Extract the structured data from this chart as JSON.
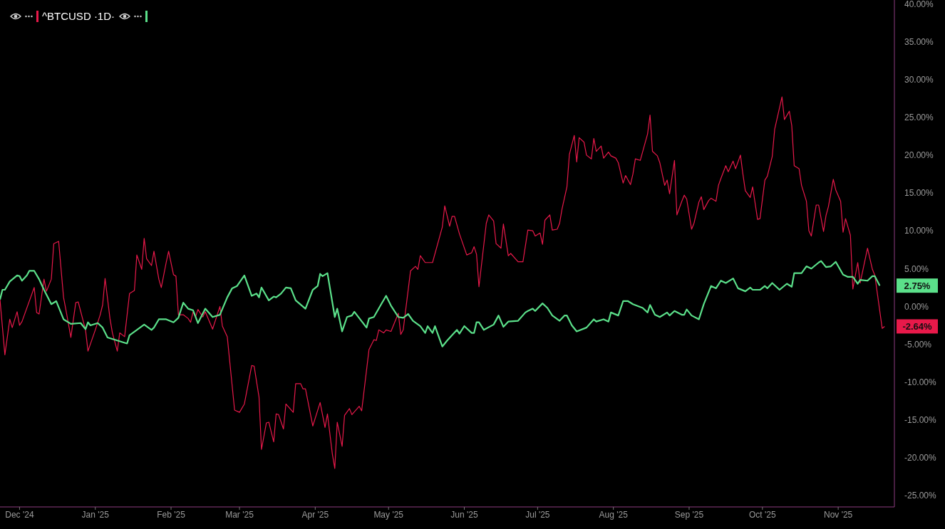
{
  "chart_data": {
    "type": "line",
    "legend": "top left",
    "marker": "none",
    "xlim": [
      "2024-11-23",
      "2025-11-24"
    ],
    "xticks": [
      {
        "value": "2024-12-01",
        "label": "Dec '24"
      },
      {
        "value": "2025-01-01",
        "label": "Jan '25"
      },
      {
        "value": "2025-02-01",
        "label": "Feb '25"
      },
      {
        "value": "2025-03-01",
        "label": "Mar '25"
      },
      {
        "value": "2025-04-01",
        "label": "Apr '25"
      },
      {
        "value": "2025-05-01",
        "label": "May '25"
      },
      {
        "value": "2025-06-01",
        "label": "Jun '25"
      },
      {
        "value": "2025-07-01",
        "label": "Jul '25"
      },
      {
        "value": "2025-08-01",
        "label": "Aug '25"
      },
      {
        "value": "2025-09-01",
        "label": "Sep '25"
      },
      {
        "value": "2025-10-01",
        "label": "Oct '25"
      },
      {
        "value": "2025-11-01",
        "label": "Nov '25"
      }
    ],
    "ylim": [
      -26.5,
      40.5
    ],
    "yticks": [
      {
        "value": -25,
        "label": "-25.00%"
      },
      {
        "value": -20,
        "label": "-20.00%"
      },
      {
        "value": -15,
        "label": "-15.00%"
      },
      {
        "value": -10,
        "label": "-10.00%"
      },
      {
        "value": -5,
        "label": "-5.00%"
      },
      {
        "value": 0,
        "label": "0.00%"
      },
      {
        "value": 5,
        "label": "5.00%"
      },
      {
        "value": 10,
        "label": "10.00%"
      },
      {
        "value": 15,
        "label": "15.00%"
      },
      {
        "value": 20,
        "label": "20.00%"
      },
      {
        "value": 25,
        "label": "25.00%"
      },
      {
        "value": 30,
        "label": "30.00%"
      },
      {
        "value": 35,
        "label": "35.00%"
      },
      {
        "value": 40,
        "label": "40.00%"
      }
    ],
    "annotations": [
      {
        "text": "-2.64%",
        "x": "2025-11-20",
        "y": -2.64
      },
      {
        "text": "2.75%",
        "x": "2025-11-18",
        "y": 2.75
      }
    ],
    "series": [
      {
        "name": "^BTCUSD ·1D·",
        "color": "#e8194a",
        "x": [
          "2024-11-23",
          "2024-11-25",
          "2024-11-27",
          "2024-11-28",
          "2024-11-30",
          "2024-12-01",
          "2024-12-02",
          "2024-12-07",
          "2024-12-08",
          "2024-12-09",
          "2024-12-11",
          "2024-12-12",
          "2024-12-14",
          "2024-12-15",
          "2024-12-17",
          "2024-12-19",
          "2024-12-20",
          "2024-12-22",
          "2024-12-24",
          "2024-12-25",
          "2024-12-28",
          "2024-12-29",
          "2025-01-01",
          "2025-01-03",
          "2025-01-04",
          "2025-01-05",
          "2025-01-07",
          "2025-01-08",
          "2025-01-10",
          "2025-01-11",
          "2025-01-13",
          "2025-01-15",
          "2025-01-17",
          "2025-01-18",
          "2025-01-20",
          "2025-01-21",
          "2025-01-22",
          "2025-01-24",
          "2025-01-25",
          "2025-01-27",
          "2025-01-28",
          "2025-01-30",
          "2025-01-31",
          "2025-02-02",
          "2025-02-03",
          "2025-02-04",
          "2025-02-06",
          "2025-02-08",
          "2025-02-09",
          "2025-02-10",
          "2025-02-11",
          "2025-02-12",
          "2025-02-14",
          "2025-02-15",
          "2025-02-18",
          "2025-02-21",
          "2025-02-22",
          "2025-02-24",
          "2025-02-27",
          "2025-03-01",
          "2025-03-03",
          "2025-03-06",
          "2025-03-07",
          "2025-03-09",
          "2025-03-10",
          "2025-03-12",
          "2025-03-13",
          "2025-03-15",
          "2025-03-16",
          "2025-03-17",
          "2025-03-19",
          "2025-03-20",
          "2025-03-23",
          "2025-03-24",
          "2025-03-26",
          "2025-03-27",
          "2025-03-28",
          "2025-03-31",
          "2025-04-03",
          "2025-04-05",
          "2025-04-06",
          "2025-04-08",
          "2025-04-09",
          "2025-04-10",
          "2025-04-12",
          "2025-04-13",
          "2025-04-15",
          "2025-04-16",
          "2025-04-19",
          "2025-04-20",
          "2025-04-23",
          "2025-04-25",
          "2025-04-26",
          "2025-04-27",
          "2025-04-29",
          "2025-04-30",
          "2025-05-02",
          "2025-05-05",
          "2025-05-06",
          "2025-05-07",
          "2025-05-10",
          "2025-05-12",
          "2025-05-13",
          "2025-05-14",
          "2025-05-16",
          "2025-05-19",
          "2025-05-23",
          "2025-05-24",
          "2025-05-26",
          "2025-05-27",
          "2025-05-28",
          "2025-05-30",
          "2025-06-02",
          "2025-06-04",
          "2025-06-05",
          "2025-06-06",
          "2025-06-07",
          "2025-06-10",
          "2025-06-11",
          "2025-06-13",
          "2025-06-14",
          "2025-06-16",
          "2025-06-17",
          "2025-06-19",
          "2025-06-20",
          "2025-06-23",
          "2025-06-25",
          "2025-06-27",
          "2025-06-29",
          "2025-06-30",
          "2025-07-02",
          "2025-07-03",
          "2025-07-04",
          "2025-07-06",
          "2025-07-07",
          "2025-07-09",
          "2025-07-10",
          "2025-07-11",
          "2025-07-13",
          "2025-07-14",
          "2025-07-16",
          "2025-07-17",
          "2025-07-18",
          "2025-07-20",
          "2025-07-21",
          "2025-07-23",
          "2025-07-24",
          "2025-07-25",
          "2025-07-27",
          "2025-07-28",
          "2025-07-30",
          "2025-07-31",
          "2025-08-02",
          "2025-08-03",
          "2025-08-05",
          "2025-08-06",
          "2025-08-08",
          "2025-08-09",
          "2025-08-10",
          "2025-08-12",
          "2025-08-15",
          "2025-08-16",
          "2025-08-17",
          "2025-08-19",
          "2025-08-20",
          "2025-08-22",
          "2025-08-23",
          "2025-08-24",
          "2025-08-26",
          "2025-08-27",
          "2025-08-29",
          "2025-08-30",
          "2025-08-31",
          "2025-09-02",
          "2025-09-03",
          "2025-09-05",
          "2025-09-06",
          "2025-09-07",
          "2025-09-09",
          "2025-09-10",
          "2025-09-12",
          "2025-09-13",
          "2025-09-14",
          "2025-09-16",
          "2025-09-17",
          "2025-09-19",
          "2025-09-20",
          "2025-09-22",
          "2025-09-23",
          "2025-09-24",
          "2025-09-26",
          "2025-09-27",
          "2025-09-29",
          "2025-09-30",
          "2025-10-02",
          "2025-10-03",
          "2025-10-05",
          "2025-10-06",
          "2025-10-09",
          "2025-10-10",
          "2025-10-12",
          "2025-10-13",
          "2025-10-14",
          "2025-10-16",
          "2025-10-17",
          "2025-10-19",
          "2025-10-20",
          "2025-10-21",
          "2025-10-23",
          "2025-10-24",
          "2025-10-26",
          "2025-10-27",
          "2025-10-28",
          "2025-10-30",
          "2025-10-31",
          "2025-11-02",
          "2025-11-03",
          "2025-11-04",
          "2025-11-06",
          "2025-11-07",
          "2025-11-09",
          "2025-11-10",
          "2025-11-13",
          "2025-11-15",
          "2025-11-16",
          "2025-11-19",
          "2025-11-20"
        ],
        "values": [
          0.9,
          -6.4,
          -1.7,
          -2.8,
          -0.7,
          -2.5,
          -2.0,
          2.5,
          -0.8,
          -1.0,
          3.6,
          2.0,
          3.6,
          8.3,
          8.6,
          1.2,
          -0.5,
          -4.1,
          0.5,
          0.6,
          -3.1,
          -5.9,
          -3.1,
          -1.1,
          0.2,
          3.7,
          -1.6,
          -3.5,
          -5.9,
          -3.5,
          -4.0,
          1.7,
          2.1,
          6.8,
          4.9,
          9.0,
          6.3,
          5.4,
          7.3,
          3.6,
          2.5,
          5.8,
          7.3,
          4.2,
          4.0,
          -1.1,
          -1.1,
          -1.6,
          -2.1,
          -0.7,
          -1.4,
          -0.4,
          -1.4,
          -0.7,
          -3.0,
          0.0,
          -2.6,
          -4.0,
          -13.7,
          -14.0,
          -12.9,
          -7.8,
          -7.9,
          -12.0,
          -18.9,
          -15.4,
          -15.3,
          -17.9,
          -14.2,
          -14.3,
          -16.2,
          -12.9,
          -14.0,
          -10.2,
          -10.2,
          -10.9,
          -10.9,
          -15.8,
          -12.7,
          -16.0,
          -14.2,
          -19.5,
          -21.4,
          -15.3,
          -18.5,
          -14.4,
          -13.5,
          -14.3,
          -13.2,
          -13.8,
          -5.7,
          -4.4,
          -4.5,
          -3.1,
          -3.5,
          -3.1,
          -3.3,
          -0.9,
          -3.7,
          -3.1,
          4.7,
          5.3,
          4.9,
          6.7,
          5.8,
          5.8,
          10.5,
          13.3,
          10.6,
          11.9,
          11.9,
          9.6,
          6.8,
          7.1,
          7.9,
          6.9,
          2.6,
          11.0,
          12.1,
          11.3,
          8.3,
          7.7,
          10.9,
          6.7,
          7.0,
          5.9,
          5.9,
          10.1,
          10.0,
          9.3,
          9.7,
          8.2,
          11.4,
          12.1,
          10.1,
          10.2,
          11.0,
          12.9,
          15.8,
          20.1,
          22.6,
          19.1,
          22.3,
          21.7,
          20.0,
          19.5,
          22.2,
          20.5,
          21.2,
          19.6,
          20.4,
          19.9,
          19.6,
          19.0,
          16.3,
          17.3,
          16.1,
          17.5,
          19.5,
          19.3,
          22.8,
          25.3,
          20.5,
          19.9,
          19.0,
          16.0,
          16.7,
          14.9,
          19.3,
          12.1,
          13.9,
          14.7,
          14.2,
          10.2,
          11.0,
          13.8,
          14.5,
          12.8,
          14.0,
          14.3,
          13.9,
          16.0,
          16.9,
          18.6,
          17.8,
          19.2,
          18.2,
          20.0,
          17.5,
          15.3,
          14.4,
          15.8,
          11.5,
          11.6,
          16.7,
          17.2,
          19.8,
          23.4,
          27.7,
          24.7,
          25.8,
          23.9,
          18.6,
          18.2,
          16.0,
          13.9,
          10.0,
          9.3,
          13.4,
          13.4,
          9.9,
          12.0,
          13.2,
          16.8,
          15.4,
          13.9,
          9.8,
          11.6,
          9.4,
          2.3,
          5.8,
          3.1,
          7.7,
          4.9,
          4.1,
          -2.9,
          -2.64
        ]
      },
      {
        "color": "#5be08a",
        "x": [
          "2024-11-23",
          "2024-11-24",
          "2024-11-25",
          "2024-11-27",
          "2024-11-30",
          "2024-12-01",
          "2024-12-02",
          "2024-12-04",
          "2024-12-05",
          "2024-12-07",
          "2024-12-09",
          "2024-12-11",
          "2024-12-14",
          "2024-12-16",
          "2024-12-19",
          "2024-12-22",
          "2024-12-26",
          "2024-12-28",
          "2024-12-29",
          "2024-12-30",
          "2025-01-02",
          "2025-01-04",
          "2025-01-06",
          "2025-01-10",
          "2025-01-14",
          "2025-01-15",
          "2025-01-18",
          "2025-01-21",
          "2025-01-24",
          "2025-01-25",
          "2025-01-27",
          "2025-01-30",
          "2025-02-02",
          "2025-02-04",
          "2025-02-06",
          "2025-02-08",
          "2025-02-10",
          "2025-02-12",
          "2025-02-15",
          "2025-02-18",
          "2025-02-21",
          "2025-02-24",
          "2025-02-26",
          "2025-02-28",
          "2025-03-03",
          "2025-03-06",
          "2025-03-08",
          "2025-03-09",
          "2025-03-10",
          "2025-03-13",
          "2025-03-15",
          "2025-03-16",
          "2025-03-18",
          "2025-03-20",
          "2025-03-22",
          "2025-03-24",
          "2025-03-28",
          "2025-03-31",
          "2025-04-02",
          "2025-04-03",
          "2025-04-04",
          "2025-04-06",
          "2025-04-09",
          "2025-04-10",
          "2025-04-12",
          "2025-04-14",
          "2025-04-16",
          "2025-04-17",
          "2025-04-22",
          "2025-04-23",
          "2025-04-25",
          "2025-04-28",
          "2025-04-30",
          "2025-05-02",
          "2025-05-05",
          "2025-05-07",
          "2025-05-09",
          "2025-05-11",
          "2025-05-14",
          "2025-05-16",
          "2025-05-17",
          "2025-05-19",
          "2025-05-20",
          "2025-05-23",
          "2025-05-25",
          "2025-05-29",
          "2025-05-30",
          "2025-06-01",
          "2025-06-04",
          "2025-06-05",
          "2025-06-06",
          "2025-06-07",
          "2025-06-09",
          "2025-06-13",
          "2025-06-15",
          "2025-06-17",
          "2025-06-19",
          "2025-06-23",
          "2025-06-26",
          "2025-06-27",
          "2025-06-29",
          "2025-06-30",
          "2025-07-03",
          "2025-07-05",
          "2025-07-07",
          "2025-07-10",
          "2025-07-12",
          "2025-07-13",
          "2025-07-15",
          "2025-07-17",
          "2025-07-21",
          "2025-07-24",
          "2025-07-25",
          "2025-07-28",
          "2025-07-30",
          "2025-07-31",
          "2025-08-03",
          "2025-08-05",
          "2025-08-07",
          "2025-08-09",
          "2025-08-13",
          "2025-08-15",
          "2025-08-16",
          "2025-08-18",
          "2025-08-20",
          "2025-08-23",
          "2025-08-24",
          "2025-08-26",
          "2025-08-29",
          "2025-08-30",
          "2025-08-31",
          "2025-09-02",
          "2025-09-05",
          "2025-09-07",
          "2025-09-10",
          "2025-09-12",
          "2025-09-14",
          "2025-09-16",
          "2025-09-19",
          "2025-09-21",
          "2025-09-24",
          "2025-09-26",
          "2025-09-27",
          "2025-09-30",
          "2025-10-02",
          "2025-10-03",
          "2025-10-05",
          "2025-10-08",
          "2025-10-11",
          "2025-10-13",
          "2025-10-14",
          "2025-10-17",
          "2025-10-19",
          "2025-10-21",
          "2025-10-24",
          "2025-10-25",
          "2025-10-27",
          "2025-10-29",
          "2025-10-31",
          "2025-11-03",
          "2025-11-05",
          "2025-11-07",
          "2025-11-09",
          "2025-11-10",
          "2025-11-13",
          "2025-11-15",
          "2025-11-16",
          "2025-11-18"
        ],
        "values": [
          0.9,
          2.2,
          2.2,
          3.3,
          4.1,
          4.0,
          3.4,
          4.1,
          4.7,
          4.7,
          3.6,
          2.2,
          0.3,
          0.7,
          -1.7,
          -2.3,
          -2.2,
          -3.0,
          -2.1,
          -2.5,
          -2.2,
          -2.8,
          -4.1,
          -4.5,
          -4.9,
          -3.8,
          -3.1,
          -2.4,
          -3.1,
          -2.8,
          -1.7,
          -1.7,
          -2.1,
          -1.5,
          0.5,
          -0.3,
          -0.5,
          -2.2,
          -0.3,
          -1.4,
          -1.1,
          1.2,
          2.4,
          2.7,
          4.1,
          1.4,
          1.7,
          1.2,
          2.5,
          0.8,
          1.3,
          1.2,
          1.7,
          2.5,
          2.4,
          0.8,
          -0.3,
          2.2,
          2.7,
          4.3,
          4.0,
          4.4,
          -1.4,
          -0.3,
          -3.3,
          -1.4,
          -1.2,
          -0.7,
          -2.8,
          -1.6,
          -1.4,
          0.3,
          1.4,
          0.1,
          -1.4,
          -1.5,
          -1.0,
          -1.9,
          -2.6,
          -3.5,
          -2.6,
          -3.5,
          -2.6,
          -5.3,
          -4.5,
          -3.1,
          -3.6,
          -2.6,
          -3.5,
          -3.5,
          -2.1,
          -2.1,
          -3.1,
          -2.4,
          -1.2,
          -2.7,
          -2.0,
          -1.9,
          -0.8,
          -0.6,
          -0.3,
          -0.6,
          0.4,
          -0.2,
          -1.2,
          -1.9,
          -1.2,
          -1.2,
          -2.5,
          -3.3,
          -2.8,
          -1.7,
          -2.0,
          -1.7,
          -2.0,
          -0.8,
          -1.2,
          0.7,
          0.7,
          0.3,
          -0.2,
          -0.8,
          0.2,
          -1.1,
          -1.4,
          -0.8,
          -1.2,
          -0.6,
          -1.1,
          -1.1,
          -0.4,
          -1.2,
          -1.7,
          0.3,
          2.7,
          2.4,
          3.4,
          3.1,
          3.7,
          2.4,
          2.0,
          2.5,
          2.2,
          2.2,
          2.7,
          2.4,
          3.1,
          2.2,
          3.0,
          2.6,
          4.4,
          4.4,
          5.3,
          5.0,
          5.8,
          6.0,
          5.2,
          5.3,
          5.9,
          4.2,
          3.9,
          3.9,
          3.0,
          3.5,
          3.4,
          4.0,
          4.0,
          2.75
        ]
      }
    ]
  }
}
